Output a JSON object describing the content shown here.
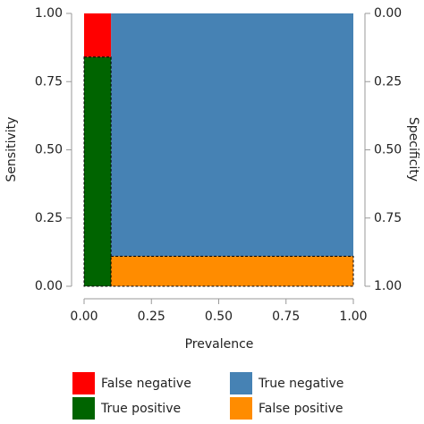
{
  "chart_data": {
    "type": "mosaic",
    "xlabel": "Prevalence",
    "ylabel": "Sensitivity",
    "y2label": "Specificity",
    "prevalence": 0.1,
    "sensitivity": 0.84,
    "specificity": 0.89,
    "xlim": [
      0,
      1
    ],
    "xticks": [
      {
        "value": 0,
        "label": "0.00"
      },
      {
        "value": 0.25,
        "label": "0.25"
      },
      {
        "value": 0.5,
        "label": "0.50"
      },
      {
        "value": 0.75,
        "label": "0.75"
      },
      {
        "value": 1,
        "label": "1.00"
      }
    ],
    "ylim": [
      0,
      1
    ],
    "yticks": [
      {
        "value": 0,
        "label": "0.00"
      },
      {
        "value": 0.25,
        "label": "0.25"
      },
      {
        "value": 0.5,
        "label": "0.50"
      },
      {
        "value": 0.75,
        "label": "0.75"
      },
      {
        "value": 1,
        "label": "1.00"
      }
    ],
    "y2lim": [
      1,
      0
    ],
    "y2ticks": [
      {
        "value": 0,
        "label": "0.00"
      },
      {
        "value": 0.25,
        "label": "0.25"
      },
      {
        "value": 0.5,
        "label": "0.50"
      },
      {
        "value": 0.75,
        "label": "0.75"
      },
      {
        "value": 1,
        "label": "1.00"
      }
    ],
    "segments": [
      {
        "name": "False negative",
        "color": "#ff0000"
      },
      {
        "name": "True negative",
        "color": "#4682b4"
      },
      {
        "name": "True positive",
        "color": "#006400"
      },
      {
        "name": "False positive",
        "color": "#ff8c00"
      }
    ]
  }
}
